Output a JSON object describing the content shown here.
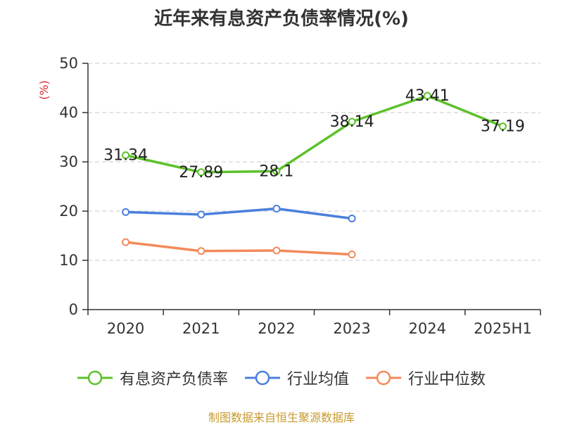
{
  "chart_data": {
    "type": "line",
    "title": "近年来有息资产负债率情况(%)",
    "ylabel": "(%)",
    "categories": [
      "2020",
      "2021",
      "2022",
      "2023",
      "2024",
      "2025H1"
    ],
    "ylim": [
      0,
      50
    ],
    "yticks": [
      0,
      10,
      20,
      30,
      40,
      50
    ],
    "grid": true,
    "legend_position": "bottom",
    "series": [
      {
        "name": "有息资产负债率",
        "color": "#5cc12a",
        "values": [
          31.34,
          27.89,
          28.1,
          38.14,
          43.41,
          37.19
        ],
        "labels": [
          "31.34",
          "27.89",
          "28.1",
          "38.14",
          "43.41",
          "37.19"
        ]
      },
      {
        "name": "行业均值",
        "color": "#4a7fdc",
        "values": [
          19.8,
          19.3,
          20.5,
          18.5,
          null,
          null
        ]
      },
      {
        "name": "行业中位数",
        "color": "#f28a5a",
        "values": [
          13.7,
          11.9,
          12.0,
          11.2,
          null,
          null
        ]
      }
    ],
    "source": "制图数据来自恒生聚源数据库"
  }
}
